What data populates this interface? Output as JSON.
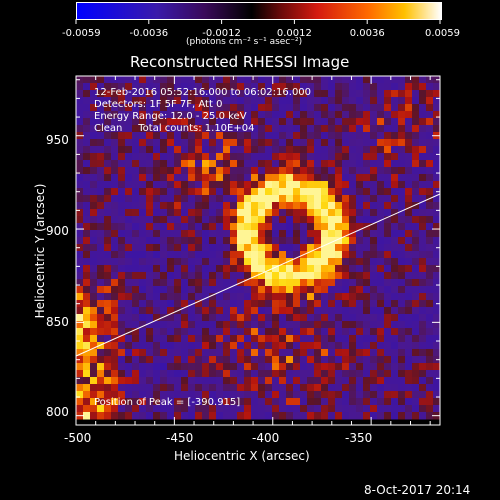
{
  "colorbar": {
    "tick_labels": [
      "-0.0059",
      "-0.0036",
      "-0.0012",
      "0.0012",
      "0.0036",
      "0.0059"
    ],
    "units_label": "(photons cm⁻² s⁻¹ asec⁻²)",
    "colors": [
      "#0000ff",
      "#5a1a9a",
      "#000000",
      "#c21515",
      "#ff8a00",
      "#ffffff"
    ]
  },
  "plot": {
    "title": "Reconstructed RHESSI Image",
    "xlabel": "Heliocentric X (arcsec)",
    "ylabel": "Heliocentric Y (arcsec)",
    "x_ticks": [
      "-500",
      "-450",
      "-400",
      "-350"
    ],
    "y_ticks": [
      "800",
      "850",
      "900",
      "950"
    ],
    "xlim": [
      -500,
      -315
    ],
    "ylim": [
      795,
      982
    ]
  },
  "annotations": {
    "time_range": "12-Feb-2016 05:52:16.000 to 06:02:16.000",
    "detectors": "Detectors: 1F 5F 7F, Att 0",
    "energy_range": "Energy Range: 12.0 - 25.0 keV",
    "clean_counts": "Clean     Total counts: 1.10E+04",
    "peak_position": "Position of Peak = [-390.915]"
  },
  "footer": {
    "timestamp": "8-Oct-2017 20:14"
  },
  "image_colors": {
    "background": "#4a1890",
    "source": "#ffd400"
  }
}
